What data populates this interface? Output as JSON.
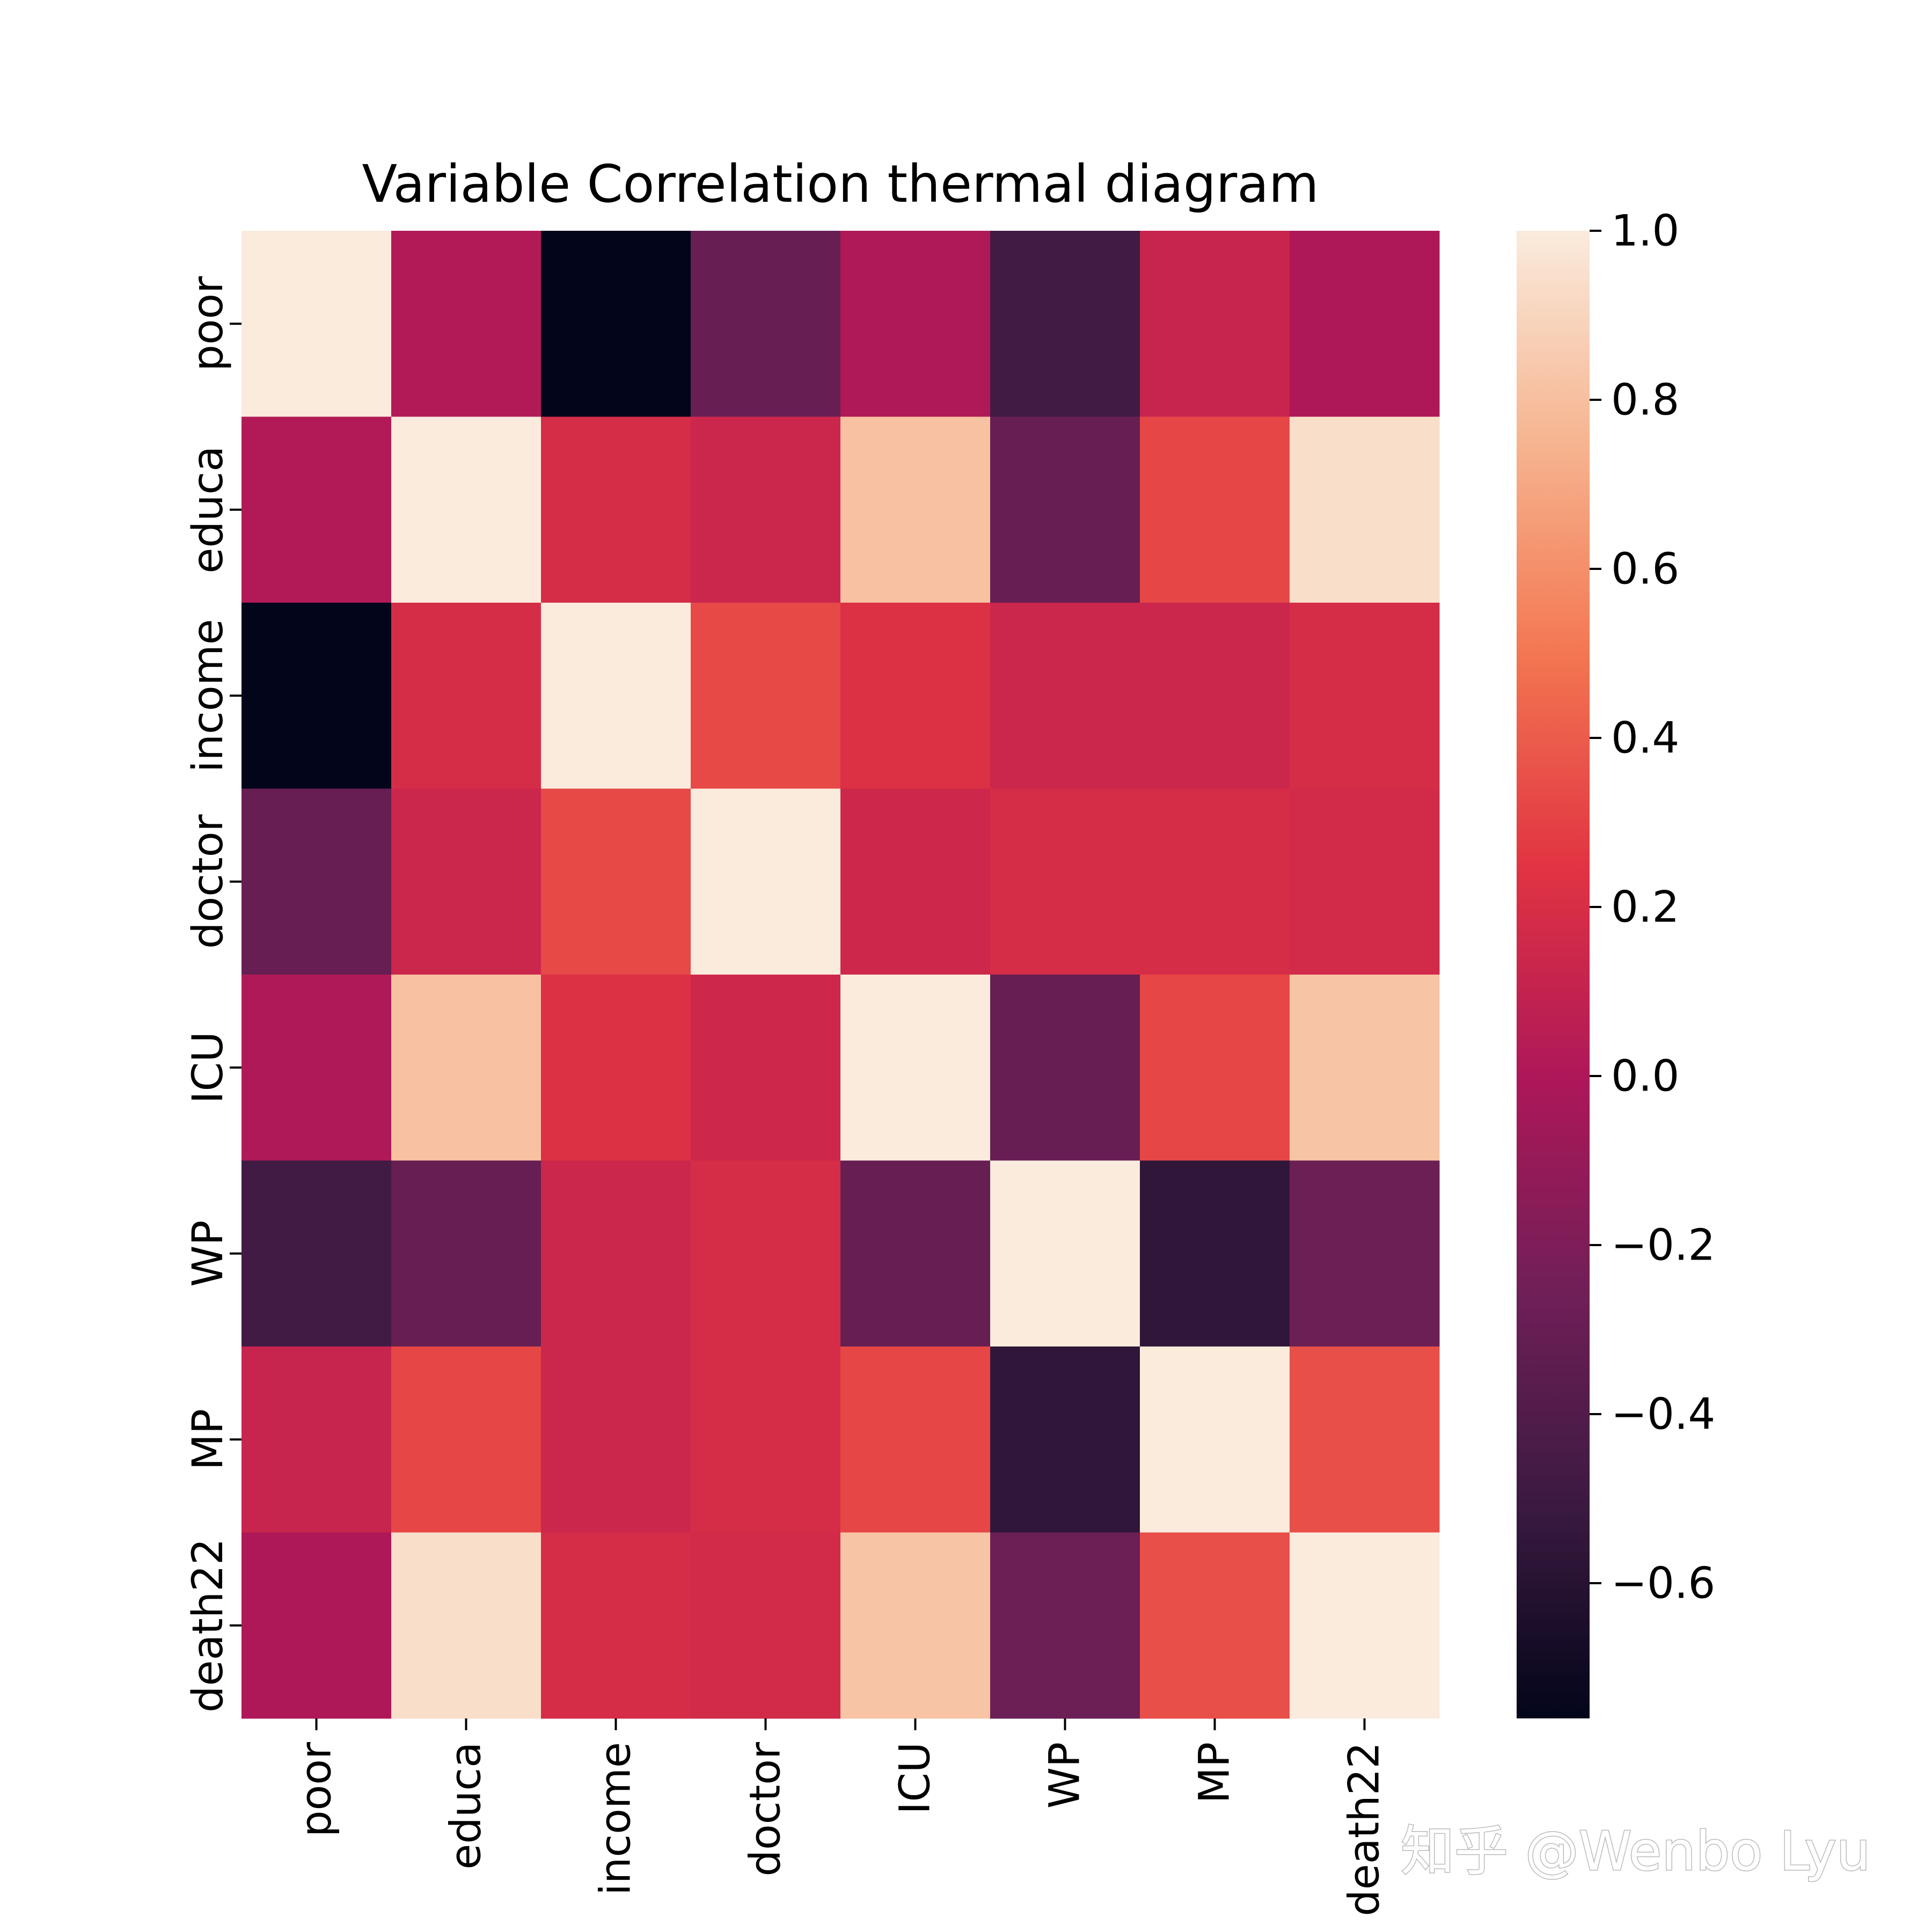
{
  "chart_data": {
    "type": "heatmap",
    "title": "Variable Correlation thermal diagram",
    "row_labels": [
      "poor",
      "educa",
      "income",
      "doctor",
      "ICU",
      "WP",
      "MP",
      "death22"
    ],
    "col_labels": [
      "poor",
      "educa",
      "income",
      "doctor",
      "ICU",
      "WP",
      "MP",
      "death22"
    ],
    "values": [
      [
        1.0,
        0.02,
        -0.76,
        -0.3,
        0.01,
        -0.48,
        0.12,
        0.0
      ],
      [
        0.02,
        1.0,
        0.19,
        0.14,
        0.81,
        -0.3,
        0.32,
        0.94
      ],
      [
        -0.76,
        0.19,
        1.0,
        0.33,
        0.22,
        0.14,
        0.14,
        0.19
      ],
      [
        -0.3,
        0.14,
        0.33,
        1.0,
        0.15,
        0.19,
        0.19,
        0.17
      ],
      [
        0.01,
        0.81,
        0.22,
        0.15,
        1.0,
        -0.3,
        0.32,
        0.82
      ],
      [
        -0.48,
        -0.3,
        0.14,
        0.19,
        -0.3,
        1.0,
        -0.56,
        -0.28
      ],
      [
        0.12,
        0.32,
        0.14,
        0.19,
        0.32,
        -0.56,
        1.0,
        0.35
      ],
      [
        0.0,
        0.94,
        0.19,
        0.17,
        0.82,
        -0.28,
        0.35,
        1.0
      ]
    ],
    "colorbar": {
      "min": -0.76,
      "max": 1.0,
      "ticks": [
        1.0,
        0.8,
        0.6,
        0.4,
        0.2,
        0.0,
        -0.2,
        -0.4,
        -0.6
      ],
      "tick_labels": [
        "1.0",
        "0.8",
        "0.6",
        "0.4",
        "0.2",
        "0.0",
        "−0.2",
        "−0.4",
        "−0.6"
      ],
      "colormap": "rocket",
      "colormap_stops": [
        "#03051a",
        "#3b1a40",
        "#701f57",
        "#ad1759",
        "#e13342",
        "#f37651",
        "#f6b48f",
        "#faebdd"
      ]
    }
  },
  "watermark": {
    "text": "知乎 @Wenbo Lyu"
  }
}
